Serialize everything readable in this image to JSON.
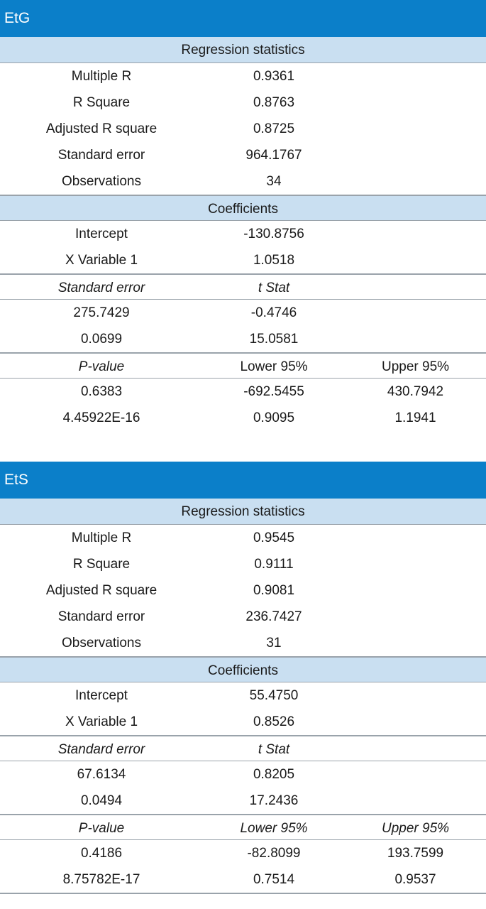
{
  "panels": [
    {
      "title": "EtG",
      "regression_header": "Regression statistics",
      "stats": [
        {
          "label": "Multiple R",
          "value": "0.9361"
        },
        {
          "label": "R Square",
          "value": "0.8763"
        },
        {
          "label": "Adjusted R square",
          "value": "0.8725"
        },
        {
          "label": "Standard error",
          "value": "964.1767"
        },
        {
          "label": "Observations",
          "value": "34"
        }
      ],
      "coefficients_header": "Coefficients",
      "coefficients": [
        {
          "label": "Intercept",
          "value": "-130.8756"
        },
        {
          "label": "X Variable 1",
          "value": "1.0518"
        }
      ],
      "se_header": {
        "col1": "Standard error",
        "col2": "t Stat"
      },
      "se_rows": [
        {
          "col1": "275.7429",
          "col2": "-0.4746"
        },
        {
          "col1": "0.0699",
          "col2": "15.0581"
        }
      ],
      "p_header": {
        "col1": "P-value",
        "col2": "Lower 95%",
        "col3": "Upper 95%"
      },
      "p_rows": [
        {
          "col1": "0.6383",
          "col2": "-692.5455",
          "col3": "430.7942"
        },
        {
          "col1": "4.45922E-16",
          "col2": "0.9095",
          "col3": "1.1941"
        }
      ]
    },
    {
      "title": "EtS",
      "regression_header": "Regression statistics",
      "stats": [
        {
          "label": "Multiple R",
          "value": "0.9545"
        },
        {
          "label": "R Square",
          "value": "0.9111"
        },
        {
          "label": "Adjusted R square",
          "value": "0.9081"
        },
        {
          "label": "Standard error",
          "value": "236.7427"
        },
        {
          "label": "Observations",
          "value": "31"
        }
      ],
      "coefficients_header": "Coefficients",
      "coefficients": [
        {
          "label": "Intercept",
          "value": "55.4750"
        },
        {
          "label": "X Variable 1",
          "value": "0.8526"
        }
      ],
      "se_header": {
        "col1": "Standard error",
        "col2": "t Stat"
      },
      "se_rows": [
        {
          "col1": "67.6134",
          "col2": "0.8205"
        },
        {
          "col1": "0.0494",
          "col2": "17.2436"
        }
      ],
      "p_header": {
        "col1": "P-value",
        "col2": "Lower 95%",
        "col3": "Upper 95%"
      },
      "p_rows": [
        {
          "col1": "0.4186",
          "col2": "-82.8099",
          "col3": "193.7599"
        },
        {
          "col1": "8.75782E-17",
          "col2": "0.7514",
          "col3": "0.9537"
        }
      ]
    }
  ]
}
